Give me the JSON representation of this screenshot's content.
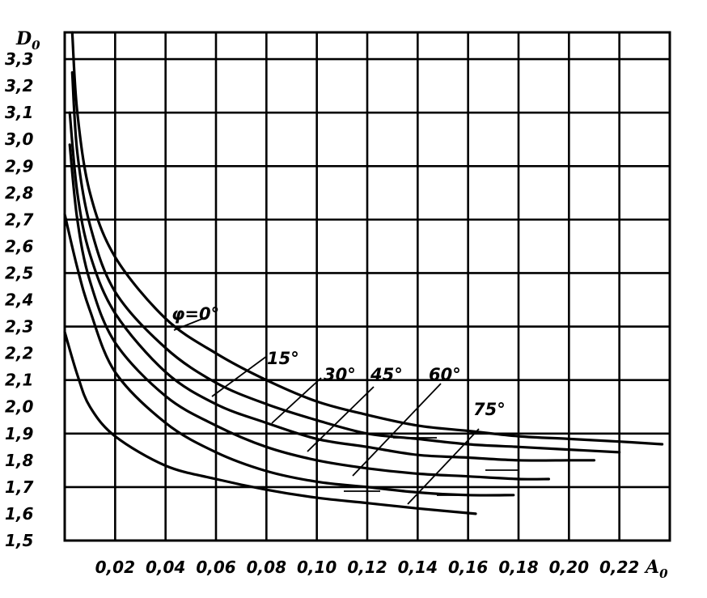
{
  "chart_data": {
    "type": "line",
    "title": "",
    "xlabel": {
      "main": "A",
      "sub": "0"
    },
    "ylabel": {
      "main": "D",
      "sub": "0"
    },
    "xlim": [
      0.0,
      0.24
    ],
    "ylim": [
      1.5,
      3.4
    ],
    "grid": true,
    "x_tick_labels": [
      "0,02",
      "0,04",
      "0,06",
      "0,08",
      "0,10",
      "0,12",
      "0,14",
      "0,16",
      "0,18",
      "0,20",
      "0,22"
    ],
    "y_tick_labels": [
      "1,5",
      "1,6",
      "1,7",
      "1,8",
      "1,9",
      "2,0",
      "2,1",
      "2,2",
      "2,3",
      "2,4",
      "2,5",
      "2,6",
      "2,7",
      "2,8",
      "2,9",
      "3,0",
      "3,1",
      "3,2",
      "3,3"
    ],
    "series": [
      {
        "name": "φ=0°",
        "points": [
          [
            0.003,
            3.4
          ],
          [
            0.005,
            3.1
          ],
          [
            0.01,
            2.8
          ],
          [
            0.02,
            2.56
          ],
          [
            0.04,
            2.33
          ],
          [
            0.06,
            2.2
          ],
          [
            0.08,
            2.1
          ],
          [
            0.1,
            2.02
          ],
          [
            0.12,
            1.97
          ],
          [
            0.14,
            1.93
          ],
          [
            0.16,
            1.91
          ],
          [
            0.18,
            1.89
          ],
          [
            0.2,
            1.88
          ],
          [
            0.22,
            1.87
          ],
          [
            0.237,
            1.86
          ]
        ]
      },
      {
        "name": "15°",
        "points": [
          [
            0.003,
            3.25
          ],
          [
            0.005,
            2.95
          ],
          [
            0.01,
            2.68
          ],
          [
            0.02,
            2.43
          ],
          [
            0.04,
            2.22
          ],
          [
            0.06,
            2.09
          ],
          [
            0.08,
            2.01
          ],
          [
            0.1,
            1.95
          ],
          [
            0.12,
            1.9
          ],
          [
            0.14,
            1.88
          ],
          [
            0.16,
            1.86
          ],
          [
            0.18,
            1.85
          ],
          [
            0.2,
            1.84
          ],
          [
            0.22,
            1.83
          ]
        ]
      },
      {
        "name": "30°",
        "points": [
          [
            0.002,
            3.1
          ],
          [
            0.005,
            2.8
          ],
          [
            0.01,
            2.57
          ],
          [
            0.02,
            2.35
          ],
          [
            0.04,
            2.13
          ],
          [
            0.06,
            2.01
          ],
          [
            0.08,
            1.94
          ],
          [
            0.1,
            1.88
          ],
          [
            0.12,
            1.85
          ],
          [
            0.14,
            1.82
          ],
          [
            0.16,
            1.81
          ],
          [
            0.18,
            1.8
          ],
          [
            0.2,
            1.8
          ],
          [
            0.21,
            1.8
          ]
        ]
      },
      {
        "name": "45°",
        "points": [
          [
            0.002,
            2.98
          ],
          [
            0.005,
            2.7
          ],
          [
            0.01,
            2.47
          ],
          [
            0.02,
            2.24
          ],
          [
            0.04,
            2.04
          ],
          [
            0.06,
            1.93
          ],
          [
            0.08,
            1.85
          ],
          [
            0.1,
            1.8
          ],
          [
            0.12,
            1.77
          ],
          [
            0.14,
            1.75
          ],
          [
            0.16,
            1.74
          ],
          [
            0.18,
            1.73
          ],
          [
            0.192,
            1.73
          ]
        ]
      },
      {
        "name": "60°",
        "points": [
          [
            0.0,
            2.72
          ],
          [
            0.005,
            2.52
          ],
          [
            0.01,
            2.36
          ],
          [
            0.02,
            2.13
          ],
          [
            0.04,
            1.94
          ],
          [
            0.06,
            1.83
          ],
          [
            0.08,
            1.76
          ],
          [
            0.1,
            1.72
          ],
          [
            0.12,
            1.7
          ],
          [
            0.14,
            1.68
          ],
          [
            0.16,
            1.67
          ],
          [
            0.178,
            1.67
          ]
        ]
      },
      {
        "name": "75°",
        "points": [
          [
            0.0,
            2.28
          ],
          [
            0.005,
            2.12
          ],
          [
            0.01,
            2.0
          ],
          [
            0.02,
            1.89
          ],
          [
            0.04,
            1.78
          ],
          [
            0.06,
            1.73
          ],
          [
            0.08,
            1.69
          ],
          [
            0.1,
            1.66
          ],
          [
            0.12,
            1.64
          ],
          [
            0.14,
            1.62
          ],
          [
            0.163,
            1.6
          ]
        ]
      }
    ]
  }
}
